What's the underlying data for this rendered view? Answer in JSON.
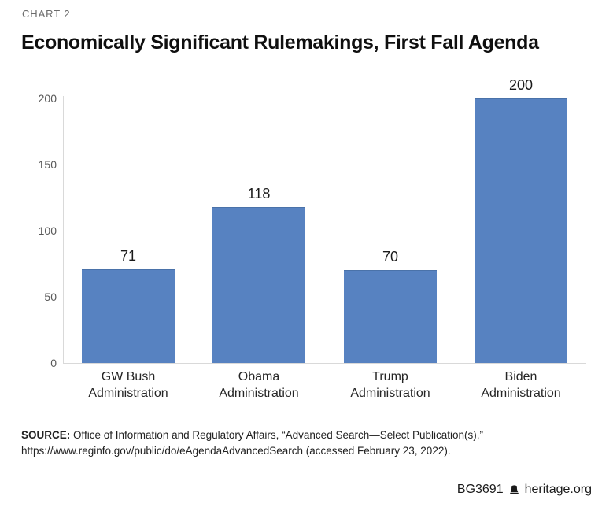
{
  "header": {
    "kicker": "CHART 2",
    "title": "Economically Significant Rulemakings, First Fall Agenda"
  },
  "chart_data": {
    "type": "bar",
    "title": "Economically Significant Rulemakings, First Fall Agenda",
    "categories": [
      "GW Bush\nAdministration",
      "Obama\nAdministration",
      "Trump\nAdministration",
      "Biden\nAdministration"
    ],
    "values": [
      71,
      118,
      70,
      200
    ],
    "xlabel": "",
    "ylabel": "",
    "yticks": [
      0,
      50,
      100,
      150,
      200
    ],
    "ylim": [
      0,
      200
    ],
    "grid": false,
    "legend": "none",
    "show_value_labels": true,
    "bar_color": "#5782c1"
  },
  "colors": {
    "bar": "#5782c1",
    "bar_top_edge": "#4a72a9",
    "axis_line": "#d9d9d9",
    "tick_text": "#595959",
    "category_text": "#262626",
    "value_text": "#1a1a1a",
    "kicker_text": "#6b6b6b"
  },
  "source": {
    "label": "SOURCE:",
    "line1": " Office of Information and Regulatory Affairs, “Advanced Search—Select Publication(s),”",
    "line2": "https://www.reginfo.gov/public/do/eAgendaAdvancedSearch (accessed February 23, 2022)."
  },
  "footer": {
    "report_id": "BG3691",
    "icon": "liberty-bell-icon",
    "site": "heritage.org"
  }
}
